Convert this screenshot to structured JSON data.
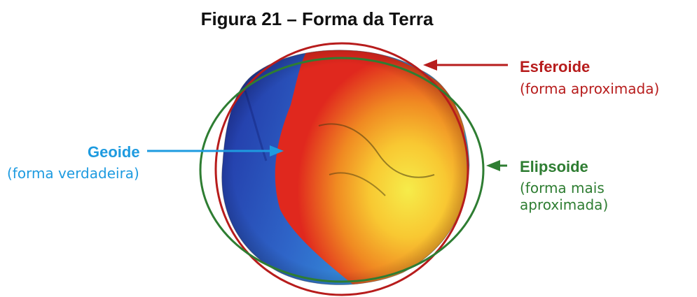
{
  "title": "Figura 21 – Forma da Terra",
  "colors": {
    "esferoide": "#b71c1c",
    "elipsoide": "#2e7d32",
    "geoide": "#1e9be0"
  },
  "labels": {
    "esferoide": {
      "name": "Esferoide",
      "desc": "(forma aproximada)"
    },
    "geoide": {
      "name": "Geoide",
      "desc": "(forma verdadeira)"
    },
    "elipsoide": {
      "name": "Elipsoide",
      "desc": "(forma mais aproximada)"
    }
  }
}
